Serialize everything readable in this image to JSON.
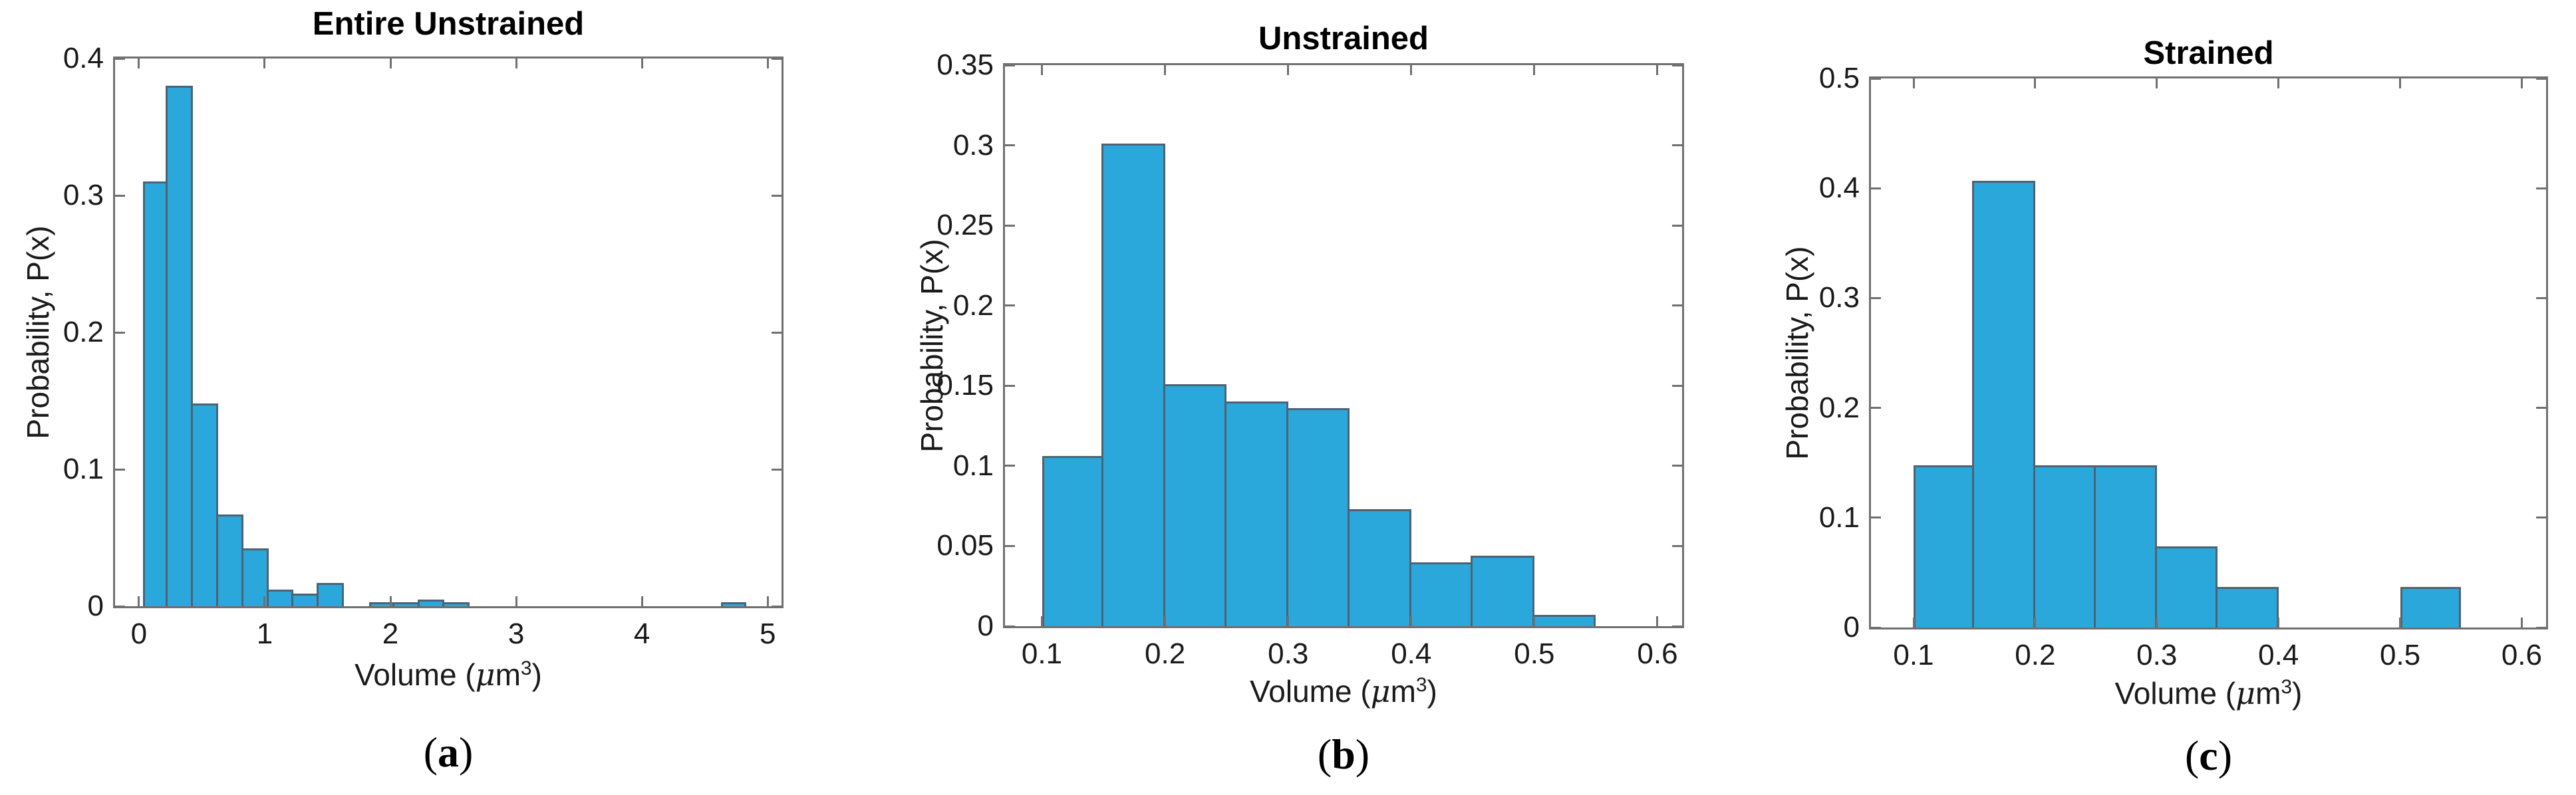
{
  "style": {
    "background": "#ffffff",
    "bar_fill": "#2BA8DB",
    "bar_edge": "#4D6373",
    "axis_color": "#707070",
    "text_color": "#1A1A1A",
    "title_color": "#000000"
  },
  "chart_data": [
    {
      "type": "bar",
      "subtype": "histogram",
      "title": "Entire Unstrained",
      "ylabel": "Probability, P(x)",
      "xlabel_parts": {
        "pre": "Volume (",
        "mu": "μ",
        "unit": "m",
        "exp": "3",
        "post": ")"
      },
      "panel_label": {
        "open": "(",
        "letter": "a",
        "close": ")"
      },
      "xlim": [
        -0.19,
        5.11
      ],
      "ylim": [
        0,
        0.4
      ],
      "x_ticks": [
        0,
        1,
        2,
        3,
        4,
        5
      ],
      "y_ticks": [
        0,
        0.1,
        0.2,
        0.3,
        0.4
      ],
      "grid": false,
      "legend": null,
      "bars": [
        {
          "x0": 0.03,
          "x1": 0.23,
          "p": 0.31
        },
        {
          "x0": 0.23,
          "x1": 0.43,
          "p": 0.38
        },
        {
          "x0": 0.43,
          "x1": 0.63,
          "p": 0.148
        },
        {
          "x0": 0.63,
          "x1": 0.83,
          "p": 0.067
        },
        {
          "x0": 0.83,
          "x1": 1.03,
          "p": 0.042
        },
        {
          "x0": 1.03,
          "x1": 1.23,
          "p": 0.012
        },
        {
          "x0": 1.23,
          "x1": 1.43,
          "p": 0.009
        },
        {
          "x0": 1.43,
          "x1": 1.63,
          "p": 0.017
        },
        {
          "x0": 1.63,
          "x1": 1.83,
          "p": 0
        },
        {
          "x0": 1.83,
          "x1": 2.03,
          "p": 0.003
        },
        {
          "x0": 2.03,
          "x1": 2.23,
          "p": 0.003
        },
        {
          "x0": 2.23,
          "x1": 2.43,
          "p": 0.005
        },
        {
          "x0": 2.43,
          "x1": 2.63,
          "p": 0.003
        },
        {
          "x0": 4.63,
          "x1": 4.83,
          "p": 0.003
        }
      ]
    },
    {
      "type": "bar",
      "subtype": "histogram",
      "title": "Unstrained",
      "ylabel": "Probability, P(x)",
      "xlabel_parts": {
        "pre": "Volume (",
        "mu": "μ",
        "unit": "m",
        "exp": "3",
        "post": ")"
      },
      "panel_label": {
        "open": "(",
        "letter": "b",
        "close": ")"
      },
      "xlim": [
        0.07,
        0.62
      ],
      "ylim": [
        0,
        0.35
      ],
      "x_ticks": [
        0.1,
        0.2,
        0.3,
        0.4,
        0.5,
        0.6
      ],
      "y_ticks": [
        0,
        0.05,
        0.1,
        0.15,
        0.2,
        0.25,
        0.3,
        0.35
      ],
      "grid": false,
      "legend": null,
      "bars": [
        {
          "x0": 0.1,
          "x1": 0.15,
          "p": 0.106
        },
        {
          "x0": 0.15,
          "x1": 0.2,
          "p": 0.301
        },
        {
          "x0": 0.2,
          "x1": 0.25,
          "p": 0.151
        },
        {
          "x0": 0.25,
          "x1": 0.3,
          "p": 0.14
        },
        {
          "x0": 0.3,
          "x1": 0.35,
          "p": 0.136
        },
        {
          "x0": 0.35,
          "x1": 0.4,
          "p": 0.073
        },
        {
          "x0": 0.4,
          "x1": 0.45,
          "p": 0.04
        },
        {
          "x0": 0.45,
          "x1": 0.5,
          "p": 0.044
        },
        {
          "x0": 0.5,
          "x1": 0.55,
          "p": 0.007
        },
        {
          "x0": 0.55,
          "x1": 0.6,
          "p": 0
        }
      ]
    },
    {
      "type": "bar",
      "subtype": "histogram",
      "title": "Strained",
      "ylabel": "Probability, P(x)",
      "xlabel_parts": {
        "pre": "Volume (",
        "mu": "μ",
        "unit": "m",
        "exp": "3",
        "post": ")"
      },
      "panel_label": {
        "open": "(",
        "letter": "c",
        "close": ")"
      },
      "xlim": [
        0.065,
        0.62
      ],
      "ylim": [
        0,
        0.5
      ],
      "x_ticks": [
        0.1,
        0.2,
        0.3,
        0.4,
        0.5,
        0.6
      ],
      "y_ticks": [
        0,
        0.1,
        0.2,
        0.3,
        0.4,
        0.5
      ],
      "grid": false,
      "legend": null,
      "bars": [
        {
          "x0": 0.1,
          "x1": 0.15,
          "p": 0.148
        },
        {
          "x0": 0.15,
          "x1": 0.2,
          "p": 0.407
        },
        {
          "x0": 0.2,
          "x1": 0.25,
          "p": 0.148
        },
        {
          "x0": 0.25,
          "x1": 0.3,
          "p": 0.148
        },
        {
          "x0": 0.3,
          "x1": 0.35,
          "p": 0.074
        },
        {
          "x0": 0.35,
          "x1": 0.4,
          "p": 0.037
        },
        {
          "x0": 0.4,
          "x1": 0.45,
          "p": 0
        },
        {
          "x0": 0.45,
          "x1": 0.5,
          "p": 0
        },
        {
          "x0": 0.5,
          "x1": 0.55,
          "p": 0.037
        },
        {
          "x0": 0.55,
          "x1": 0.6,
          "p": 0
        }
      ]
    }
  ]
}
